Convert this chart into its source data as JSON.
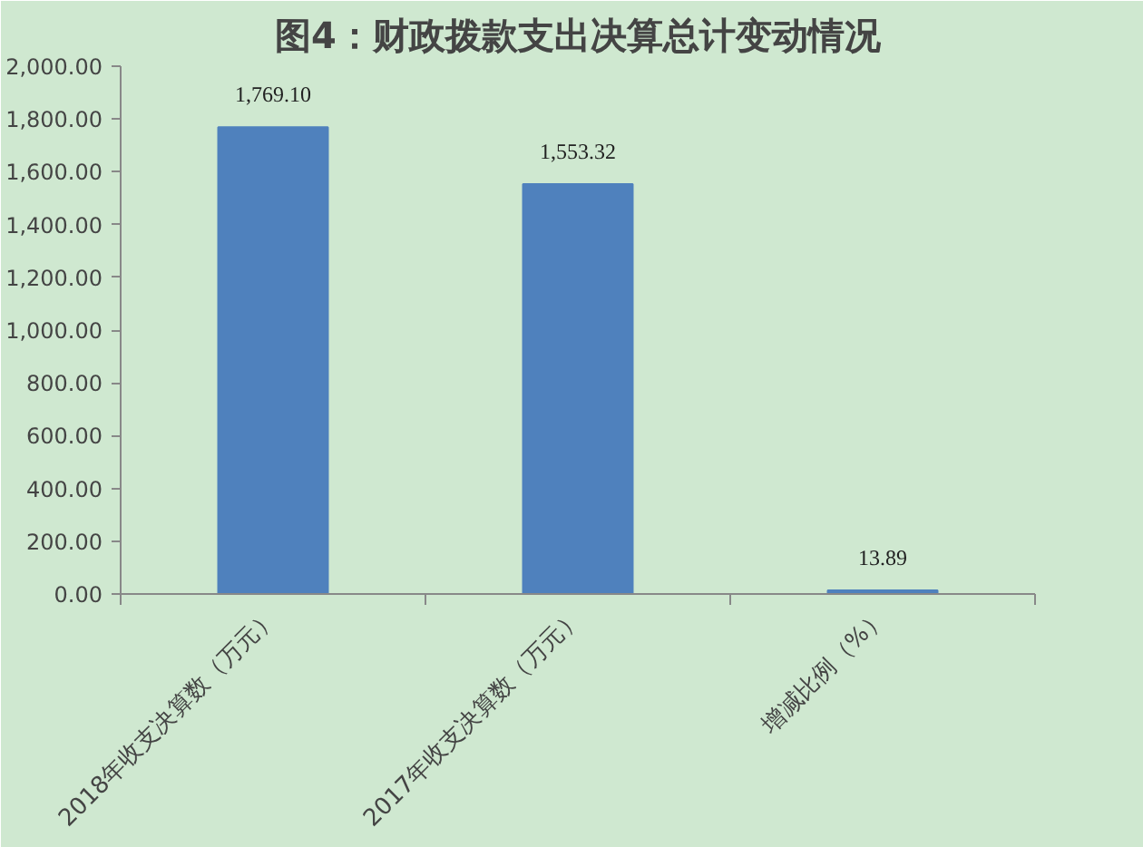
{
  "chart_data": {
    "type": "bar",
    "title": "图4：财政拨款支出决算总计变动情况",
    "categories": [
      "2018年收支决算数（万元）",
      "2017年收支决算数（万元）",
      "增减比例（%）"
    ],
    "series": [
      {
        "color": "#4f81bd",
        "values": [
          1769.1,
          1553.32,
          13.89
        ],
        "value_labels": [
          "1,769.10",
          "1,553.32",
          "13.89"
        ]
      }
    ],
    "ylim": [
      0,
      2000
    ],
    "yticks": [
      {
        "value": 0,
        "label": "0.00"
      },
      {
        "value": 200,
        "label": "200.00"
      },
      {
        "value": 400,
        "label": "400.00"
      },
      {
        "value": 600,
        "label": "600.00"
      },
      {
        "value": 800,
        "label": "800.00"
      },
      {
        "value": 1000,
        "label": "1,000.00"
      },
      {
        "value": 1200,
        "label": "1,200.00"
      },
      {
        "value": 1400,
        "label": "1,400.00"
      },
      {
        "value": 1600,
        "label": "1,600.00"
      },
      {
        "value": 1800,
        "label": "1,800.00"
      },
      {
        "value": 2000,
        "label": "2,000.00"
      }
    ],
    "grid": false
  }
}
